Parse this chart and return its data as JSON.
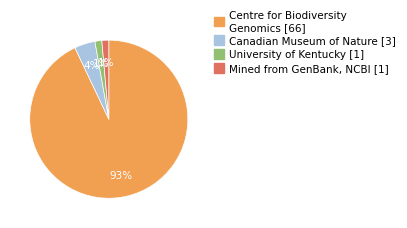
{
  "labels": [
    "Centre for Biodiversity\nGenomics [66]",
    "Canadian Museum of Nature [3]",
    "University of Kentucky [1]",
    "Mined from GenBank, NCBI [1]"
  ],
  "values": [
    66,
    3,
    1,
    1
  ],
  "colors": [
    "#f0a050",
    "#a8c4e0",
    "#90c070",
    "#e07060"
  ],
  "startangle": 90,
  "background_color": "#ffffff",
  "legend_fontsize": 7.5,
  "autopct_fontsize": 7.5
}
